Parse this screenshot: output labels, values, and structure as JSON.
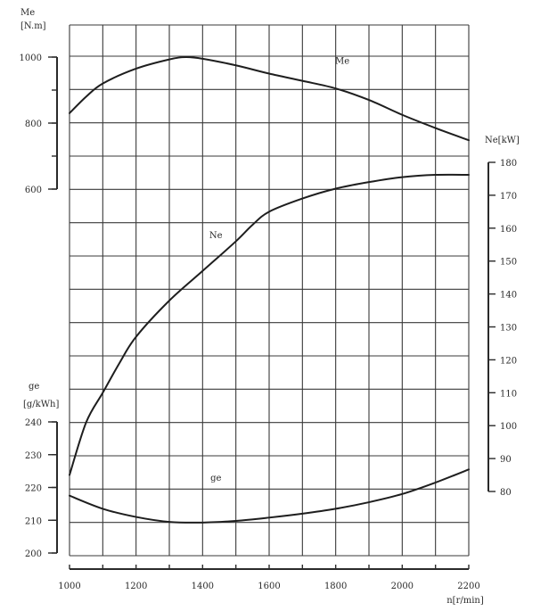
{
  "chart_data": {
    "type": "line",
    "grid": true,
    "x_axis": {
      "title": "n[r/min]",
      "range": [
        1000,
        2200
      ],
      "ticks": [
        1000,
        1200,
        1400,
        1600,
        1800,
        2000,
        2200
      ]
    },
    "y_axes": [
      {
        "id": "Me",
        "side": "left-top",
        "title_line1": "Me",
        "title_line2": "[N.m]",
        "range": [
          600,
          1000
        ],
        "ticks": [
          600,
          800,
          1000
        ]
      },
      {
        "id": "Ne",
        "side": "right",
        "title": "Ne[kW]",
        "range": [
          80,
          180
        ],
        "ticks": [
          80,
          90,
          100,
          110,
          120,
          130,
          140,
          150,
          160,
          170,
          180
        ]
      },
      {
        "id": "ge",
        "side": "left-bottom",
        "title_line1": "ge",
        "title_line2": "[g/kWh]",
        "range": [
          200,
          240
        ],
        "ticks": [
          200,
          210,
          220,
          230,
          240
        ]
      }
    ],
    "series": [
      {
        "name": "Me",
        "axis": "Me",
        "label_at": [
          1820,
          980
        ],
        "points": [
          [
            1000,
            830
          ],
          [
            1050,
            880
          ],
          [
            1100,
            920
          ],
          [
            1200,
            965
          ],
          [
            1300,
            993
          ],
          [
            1350,
            1000
          ],
          [
            1400,
            995
          ],
          [
            1500,
            975
          ],
          [
            1600,
            950
          ],
          [
            1700,
            928
          ],
          [
            1800,
            905
          ],
          [
            1900,
            870
          ],
          [
            2000,
            825
          ],
          [
            2100,
            785
          ],
          [
            2200,
            748
          ]
        ]
      },
      {
        "name": "Ne",
        "axis": "Ne",
        "label_at": [
          1440,
          157
        ],
        "points": [
          [
            1000,
            85
          ],
          [
            1050,
            101
          ],
          [
            1100,
            110
          ],
          [
            1150,
            119
          ],
          [
            1200,
            127
          ],
          [
            1300,
            138
          ],
          [
            1400,
            147
          ],
          [
            1500,
            156
          ],
          [
            1550,
            161
          ],
          [
            1600,
            165
          ],
          [
            1700,
            169
          ],
          [
            1800,
            172
          ],
          [
            1900,
            174
          ],
          [
            2000,
            175.5
          ],
          [
            2100,
            176.2
          ],
          [
            2200,
            176.2
          ]
        ]
      },
      {
        "name": "ge",
        "axis": "ge",
        "label_at": [
          1440,
          222
        ],
        "points": [
          [
            1000,
            217.5
          ],
          [
            1100,
            213.5
          ],
          [
            1200,
            211
          ],
          [
            1300,
            209.5
          ],
          [
            1400,
            209.3
          ],
          [
            1500,
            209.8
          ],
          [
            1600,
            210.8
          ],
          [
            1700,
            212
          ],
          [
            1800,
            213.5
          ],
          [
            1900,
            215.5
          ],
          [
            2000,
            218
          ],
          [
            2100,
            221.5
          ],
          [
            2200,
            225.5
          ]
        ]
      }
    ]
  }
}
